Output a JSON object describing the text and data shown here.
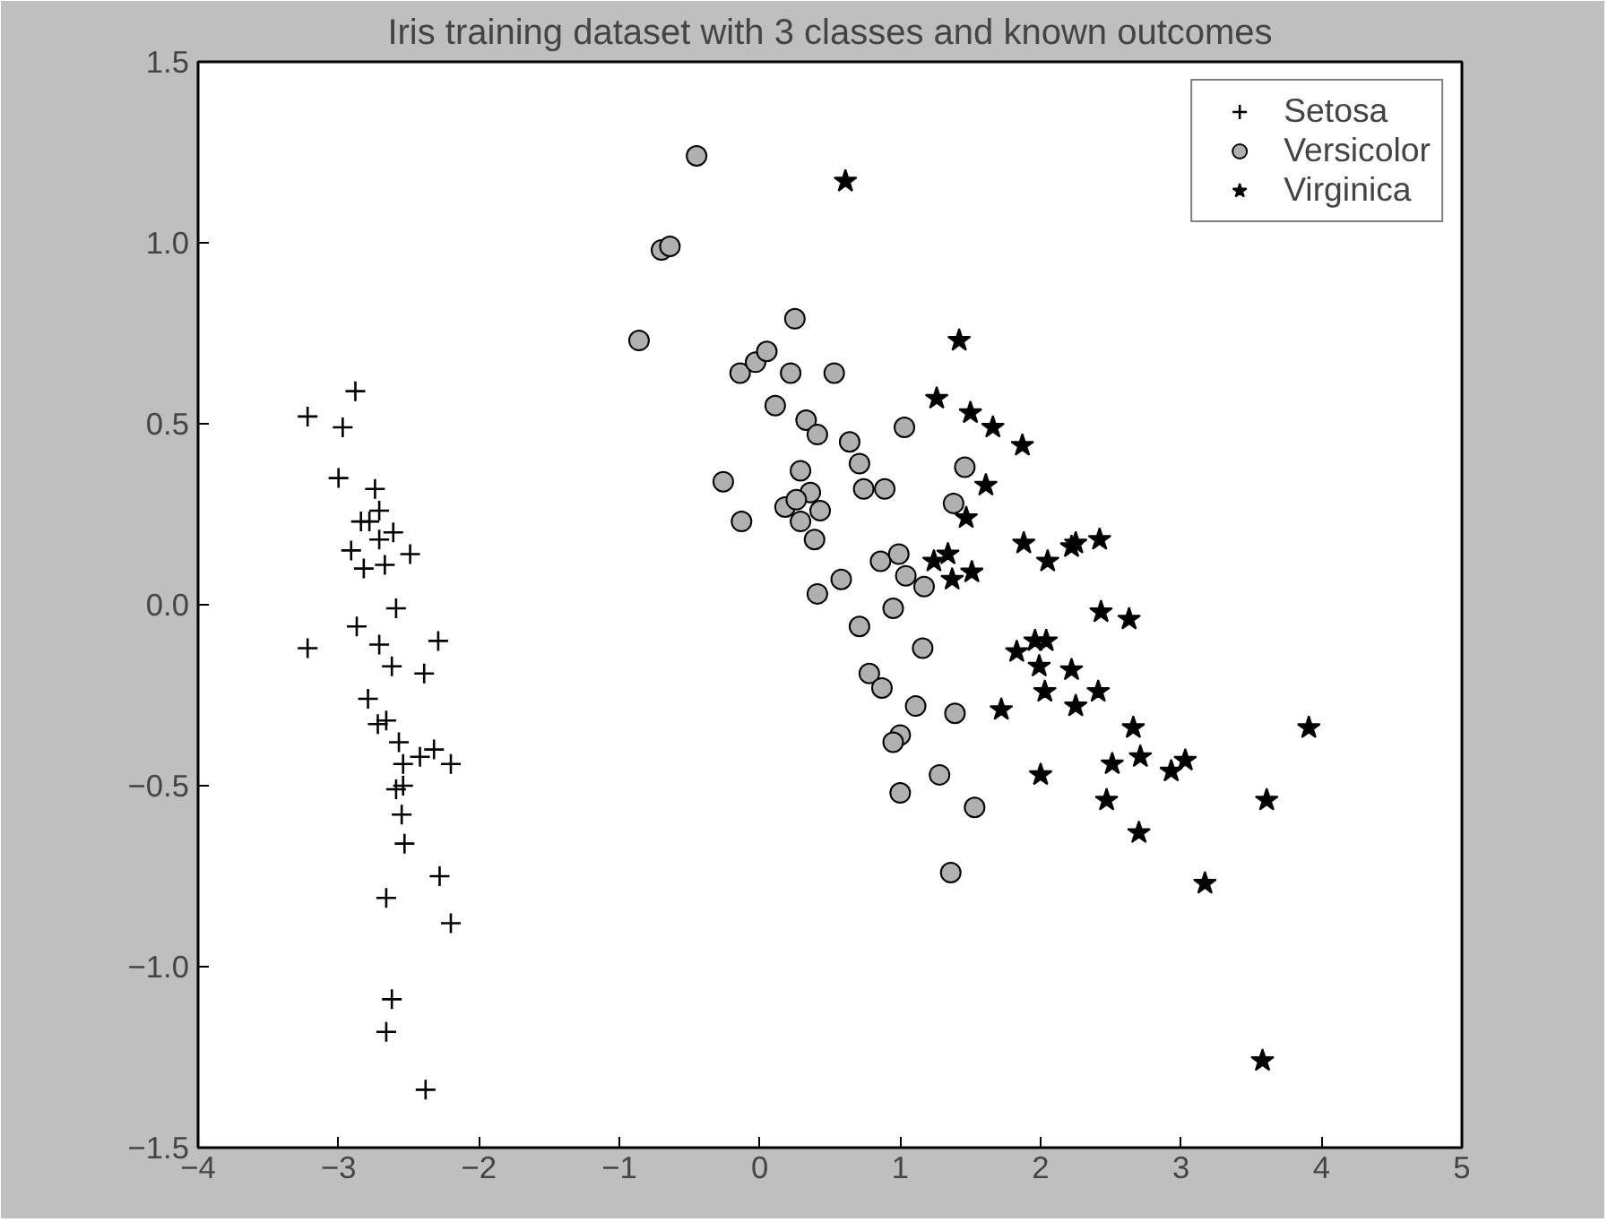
{
  "chart_data": {
    "type": "scatter",
    "title": "Iris training dataset with 3 classes and known outcomes",
    "xlim": [
      -4,
      5
    ],
    "ylim": [
      -1.5,
      1.5
    ],
    "xticks": [
      {
        "value": -4,
        "label": "−4"
      },
      {
        "value": -3,
        "label": "−3"
      },
      {
        "value": -2,
        "label": "−2"
      },
      {
        "value": -1,
        "label": "−1"
      },
      0,
      1,
      2,
      3,
      4,
      5
    ],
    "yticks": [
      {
        "value": -1.5,
        "label": "−1.5"
      },
      {
        "value": -1,
        "label": "−1.0"
      },
      {
        "value": -0.5,
        "label": "−0.5"
      },
      {
        "value": 0,
        "label": "0.0"
      },
      0.5,
      {
        "value": 1,
        "label": "1.0"
      },
      1.5
    ],
    "grid": false,
    "legend": "top right",
    "series": [
      {
        "name": "Setosa",
        "color": "#000000",
        "marker": "cross",
        "x": [
          -2.88,
          -3.22,
          -2.97,
          -3.0,
          -2.74,
          -2.71,
          -2.84,
          -2.78,
          -2.61,
          -2.71,
          -2.91,
          -2.82,
          -2.67,
          -2.49,
          -2.59,
          -2.87,
          -3.22,
          -2.71,
          -2.29,
          -2.62,
          -2.39,
          -2.79,
          -2.72,
          -2.66,
          -2.57,
          -2.54,
          -2.42,
          -2.32,
          -2.2,
          -2.59,
          -2.54,
          -2.55,
          -2.53,
          -2.28,
          -2.66,
          -2.2,
          -2.62,
          -2.66,
          -2.38
        ],
        "values": [
          0.59,
          0.52,
          0.49,
          0.35,
          0.32,
          0.26,
          0.23,
          0.23,
          0.2,
          0.18,
          0.15,
          0.1,
          0.11,
          0.14,
          -0.01,
          -0.06,
          -0.12,
          -0.11,
          -0.1,
          -0.17,
          -0.19,
          -0.26,
          -0.33,
          -0.32,
          -0.38,
          -0.44,
          -0.42,
          -0.4,
          -0.44,
          -0.51,
          -0.5,
          -0.58,
          -0.66,
          -0.75,
          -0.81,
          -0.88,
          -1.09,
          -1.18,
          -1.34
        ]
      },
      {
        "name": "Versicolor",
        "color": "#b0b0b0",
        "marker": "circle",
        "x": [
          -0.45,
          -0.7,
          -0.64,
          -0.86,
          0.25,
          -0.14,
          -0.03,
          0.05,
          0.22,
          0.53,
          0.11,
          0.33,
          0.41,
          0.64,
          1.03,
          0.71,
          0.74,
          0.89,
          1.46,
          1.38,
          -0.26,
          -0.13,
          0.29,
          0.36,
          0.18,
          0.26,
          0.43,
          0.29,
          0.39,
          0.86,
          0.99,
          1.04,
          1.17,
          0.58,
          0.41,
          0.95,
          0.71,
          1.16,
          0.78,
          0.87,
          1.11,
          1.39,
          1.0,
          0.95,
          1.28,
          1.0,
          1.53,
          1.36
        ],
        "values": [
          1.24,
          0.98,
          0.99,
          0.73,
          0.79,
          0.64,
          0.67,
          0.7,
          0.64,
          0.64,
          0.55,
          0.51,
          0.47,
          0.45,
          0.49,
          0.39,
          0.32,
          0.32,
          0.38,
          0.28,
          0.34,
          0.23,
          0.37,
          0.31,
          0.27,
          0.29,
          0.26,
          0.23,
          0.18,
          0.12,
          0.14,
          0.08,
          0.05,
          0.07,
          0.03,
          -0.01,
          -0.06,
          -0.12,
          -0.19,
          -0.23,
          -0.28,
          -0.3,
          -0.36,
          -0.38,
          -0.47,
          -0.52,
          -0.56,
          -0.74
        ]
      },
      {
        "name": "Virginica",
        "color": "#000000",
        "marker": "star",
        "x": [
          0.61,
          1.42,
          1.26,
          1.5,
          1.66,
          1.87,
          1.61,
          1.47,
          1.88,
          1.24,
          1.34,
          1.37,
          1.51,
          2.05,
          2.22,
          2.25,
          2.42,
          2.43,
          2.63,
          1.83,
          1.96,
          2.04,
          1.99,
          2.22,
          1.72,
          2.03,
          2.25,
          2.41,
          2.66,
          3.91,
          2.51,
          2.71,
          2.93,
          3.03,
          2.0,
          2.47,
          3.61,
          2.7,
          3.17,
          3.58
        ],
        "values": [
          1.17,
          0.73,
          0.57,
          0.53,
          0.49,
          0.44,
          0.33,
          0.24,
          0.17,
          0.12,
          0.14,
          0.07,
          0.09,
          0.12,
          0.16,
          0.17,
          0.18,
          -0.02,
          -0.04,
          -0.13,
          -0.1,
          -0.1,
          -0.17,
          -0.18,
          -0.29,
          -0.24,
          -0.28,
          -0.24,
          -0.34,
          -0.34,
          -0.44,
          -0.42,
          -0.46,
          -0.43,
          -0.47,
          -0.54,
          -0.54,
          -0.63,
          -0.77,
          -1.26
        ]
      }
    ]
  }
}
